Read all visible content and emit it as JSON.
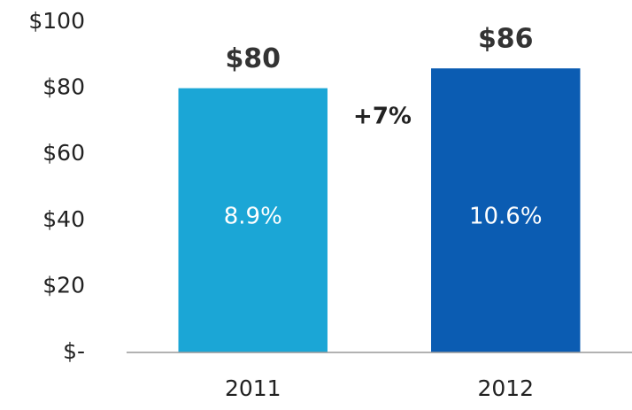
{
  "chart_data": {
    "type": "bar",
    "categories": [
      "2011",
      "2012"
    ],
    "values": [
      80,
      86
    ],
    "value_labels": [
      "$80",
      "$86"
    ],
    "bar_labels": [
      "8.9%",
      "10.6%"
    ],
    "colors": [
      "#1ba6d6",
      "#0b5cb2"
    ],
    "annotation": "+7%",
    "annotation_color": "#1aa64a",
    "ylim": [
      0,
      100
    ],
    "yticks": [
      {
        "value": 0,
        "label": "$-"
      },
      {
        "value": 20,
        "label": "$20"
      },
      {
        "value": 40,
        "label": "$40"
      },
      {
        "value": 60,
        "label": "$60"
      },
      {
        "value": 80,
        "label": "$80"
      },
      {
        "value": 100,
        "label": "$100"
      }
    ],
    "grid": false
  }
}
